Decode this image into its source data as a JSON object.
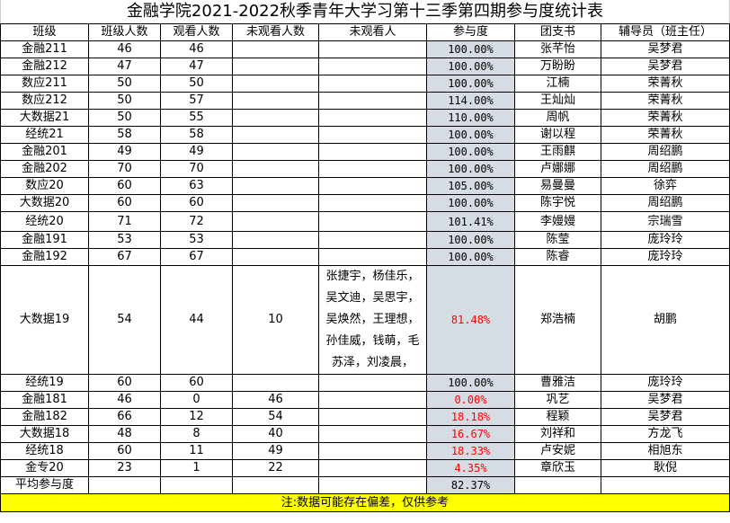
{
  "title": "金融学院2021-2022秋季青年大学习第十三季第四期参与度统计表",
  "headers": [
    "班级",
    "班级人数",
    "观看人数",
    "未观看人数",
    "未观看人",
    "参与度",
    "团支书",
    "辅导员（班主任）"
  ],
  "colors": {
    "low_rate": "#ff0000",
    "rate_fill": "#d6dce4",
    "note_fill": "#ffff00"
  },
  "rows": [
    [
      "金融211",
      "46",
      "46",
      "",
      "",
      "100.00%",
      "张芊怡",
      "吴梦君"
    ],
    [
      "金融212",
      "47",
      "47",
      "",
      "",
      "100.00%",
      "万盼盼",
      "吴梦君"
    ],
    [
      "数应211",
      "50",
      "50",
      "",
      "",
      "100.00%",
      "江楠",
      "荣菁秋"
    ],
    [
      "数应212",
      "50",
      "57",
      "",
      "",
      "114.00%",
      "王灿灿",
      "荣菁秋"
    ],
    [
      "大数据21",
      "50",
      "55",
      "",
      "",
      "110.00%",
      "周帆",
      "荣菁秋"
    ],
    [
      "经统21",
      "58",
      "58",
      "",
      "",
      "100.00%",
      "谢以程",
      "荣菁秋"
    ],
    [
      "金融201",
      "49",
      "49",
      "",
      "",
      "100.00%",
      "王雨麒",
      "周绍鹏"
    ],
    [
      "金融202",
      "70",
      "70",
      "",
      "",
      "100.00%",
      "卢娜娜",
      "周绍鹏"
    ],
    [
      "数应20",
      "60",
      "63",
      "",
      "",
      "105.00%",
      "易曼曼",
      "徐弈"
    ],
    [
      "大数据20",
      "60",
      "60",
      "",
      "",
      "100.00%",
      "陈宇悦",
      "周绍鹏"
    ],
    [
      "经统20",
      "71",
      "72",
      "",
      "",
      "101.41%",
      "李嫚嫚",
      "宗瑞雪"
    ],
    [
      "金融191",
      "53",
      "53",
      "",
      "",
      "100.00%",
      "陈莹",
      "庞玲玲"
    ],
    [
      "金融192",
      "67",
      "67",
      "",
      "",
      "100.00%",
      "陈睿",
      "庞玲玲"
    ],
    [
      "大数据19",
      "54",
      "44",
      "10",
      "张捷宇，杨佳乐，吴文迪，吴思宇，吴焕然，王理想，孙佳威，钱萌，毛苏泽，刘凌晨，",
      "81.48%",
      "郑浩楠",
      "胡鹏"
    ],
    [
      "经统19",
      "60",
      "60",
      "",
      "",
      "100.00%",
      "曹雅洁",
      "庞玲玲"
    ],
    [
      "金融181",
      "46",
      "0",
      "46",
      "",
      "0.00%",
      "巩艺",
      "吴梦君"
    ],
    [
      "金融182",
      "66",
      "12",
      "54",
      "",
      "18.18%",
      "程颖",
      "吴梦君"
    ],
    [
      "大数据18",
      "48",
      "8",
      "40",
      "",
      "16.67%",
      "刘祥和",
      "方龙飞"
    ],
    [
      "经统18",
      "60",
      "11",
      "49",
      "",
      "18.33%",
      "卢安妮",
      "相旭东"
    ],
    [
      "金专20",
      "23",
      "1",
      "22",
      "",
      "4.35%",
      "章欣玉",
      "耿倪"
    ]
  ],
  "average": {
    "label": "平均参与度",
    "value": "82.37%"
  },
  "note": "注:数据可能存在偏差，仅供参考"
}
